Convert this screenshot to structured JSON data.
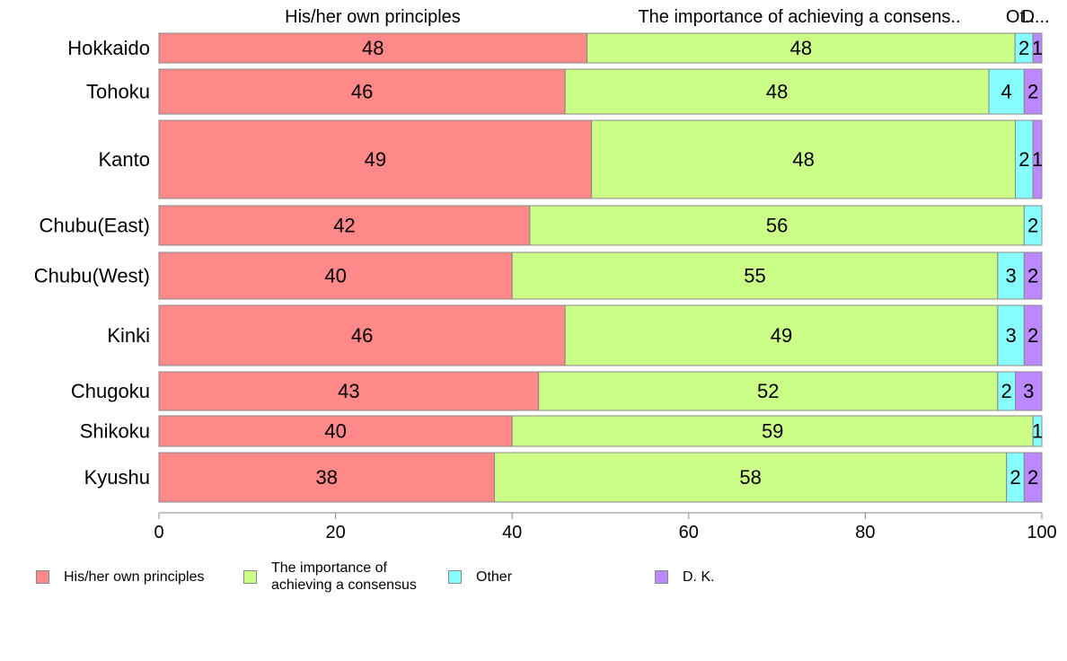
{
  "chart_data": {
    "type": "bar",
    "orientation": "horizontal",
    "stacked": true,
    "categories": [
      "Hokkaido",
      "Tohoku",
      "Kanto",
      "Chubu(East)",
      "Chubu(West)",
      "Kinki",
      "Chugoku",
      "Shikoku",
      "Kyushu"
    ],
    "series": [
      {
        "name": "His/her own principles",
        "color": "#ff8888",
        "values": [
          48,
          46,
          49,
          42,
          40,
          46,
          43,
          40,
          38
        ],
        "labels": [
          "48",
          "46",
          "49",
          "42",
          "40",
          "46",
          "43",
          "40",
          "38"
        ]
      },
      {
        "name": "The importance of achieving a consensus",
        "color": "#ccff88",
        "values": [
          48,
          48,
          48,
          56,
          55,
          49,
          52,
          59,
          58
        ],
        "labels": [
          "48",
          "48",
          "48",
          "56",
          "55",
          "49",
          "52",
          "59",
          "58"
        ]
      },
      {
        "name": "Other",
        "color": "#88ffff",
        "values": [
          2,
          4,
          2,
          2,
          3,
          3,
          2,
          1,
          2
        ],
        "labels": [
          "2",
          "4",
          "2",
          "2",
          "3",
          "3",
          "2",
          "1",
          "2"
        ]
      },
      {
        "name": "D. K.",
        "color": "#bb88ff",
        "values": [
          1,
          2,
          1,
          0,
          2,
          2,
          3,
          0,
          2
        ],
        "labels": [
          "1",
          "2",
          "1",
          "",
          "2",
          "2",
          "3",
          "",
          "2"
        ]
      }
    ],
    "top_headers": [
      "His/her own principles",
      "The importance of achieving a consens..",
      "Ot..",
      "D..."
    ],
    "xlim": [
      0,
      100
    ],
    "xticks": [
      "0",
      "20",
      "40",
      "60",
      "80",
      "100"
    ],
    "legend_position": "bottom-left",
    "legend_labels": [
      "His/her own principles",
      "The importance of\nachieving a consensus",
      "Other",
      "D. K."
    ],
    "grid": false
  }
}
